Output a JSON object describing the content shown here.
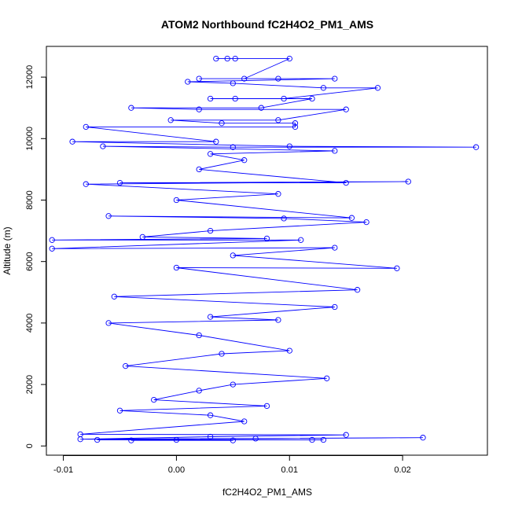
{
  "chart_data": {
    "type": "line",
    "title": "ATOM2 Northbound fC2H4O2_PM1_AMS",
    "xlabel": "fC2H4O2_PM1_AMS",
    "ylabel": "Altitude (m)",
    "xlim": [
      -0.0115,
      0.0275
    ],
    "ylim": [
      -300,
      13000
    ],
    "x_ticks": [
      -0.01,
      0.0,
      0.01,
      0.02
    ],
    "x_tick_labels": [
      "-0.01",
      "0.00",
      "0.01",
      "0.02"
    ],
    "y_ticks": [
      0,
      2000,
      4000,
      6000,
      8000,
      10000,
      12000
    ],
    "y_tick_labels": [
      "0",
      "2000",
      "4000",
      "6000",
      "8000",
      "10000",
      "12000"
    ],
    "grid": false,
    "legend": "none",
    "markers": "open-circle",
    "series_color": "#0000ff",
    "series": [
      {
        "points": [
          [
            0.0045,
            12600
          ],
          [
            0.0035,
            12600
          ],
          [
            0.0052,
            12600
          ],
          [
            0.01,
            12600
          ],
          [
            0.006,
            11950
          ],
          [
            0.002,
            11950
          ],
          [
            0.009,
            11950
          ],
          [
            0.014,
            11950
          ],
          [
            0.001,
            11850
          ],
          [
            0.005,
            11800
          ],
          [
            0.013,
            11650
          ],
          [
            0.0178,
            11650
          ],
          [
            0.0095,
            11300
          ],
          [
            0.003,
            11300
          ],
          [
            0.0052,
            11300
          ],
          [
            0.012,
            11300
          ],
          [
            0.0075,
            11000
          ],
          [
            -0.004,
            11000
          ],
          [
            0.002,
            10950
          ],
          [
            0.015,
            10950
          ],
          [
            0.009,
            10600
          ],
          [
            -0.0005,
            10600
          ],
          [
            0.004,
            10500
          ],
          [
            0.0105,
            10500
          ],
          [
            0.0105,
            10380
          ],
          [
            -0.008,
            10380
          ],
          [
            0.0035,
            9900
          ],
          [
            -0.0092,
            9900
          ],
          [
            0.01,
            9750
          ],
          [
            0.0265,
            9720
          ],
          [
            0.005,
            9720
          ],
          [
            -0.0065,
            9750
          ],
          [
            0.014,
            9600
          ],
          [
            0.003,
            9500
          ],
          [
            0.006,
            9300
          ],
          [
            0.002,
            9000
          ],
          [
            0.015,
            8560
          ],
          [
            -0.005,
            8560
          ],
          [
            0.0205,
            8600
          ],
          [
            -0.008,
            8520
          ],
          [
            0.009,
            8200
          ],
          [
            0.0,
            8000
          ],
          [
            0.0155,
            7420
          ],
          [
            -0.006,
            7480
          ],
          [
            0.0095,
            7400
          ],
          [
            0.0168,
            7280
          ],
          [
            0.003,
            7000
          ],
          [
            -0.003,
            6800
          ],
          [
            0.008,
            6750
          ],
          [
            -0.011,
            6700
          ],
          [
            0.011,
            6700
          ],
          [
            -0.011,
            6420
          ],
          [
            0.014,
            6450
          ],
          [
            0.005,
            6200
          ],
          [
            0.0195,
            5780
          ],
          [
            0.0,
            5800
          ],
          [
            0.016,
            5080
          ],
          [
            -0.0055,
            4860
          ],
          [
            0.014,
            4520
          ],
          [
            0.003,
            4200
          ],
          [
            0.009,
            4100
          ],
          [
            -0.006,
            4000
          ],
          [
            0.002,
            3600
          ],
          [
            0.01,
            3100
          ],
          [
            0.004,
            3000
          ],
          [
            -0.0045,
            2600
          ],
          [
            0.0133,
            2200
          ],
          [
            0.005,
            2000
          ],
          [
            0.002,
            1800
          ],
          [
            -0.002,
            1500
          ],
          [
            0.008,
            1300
          ],
          [
            -0.005,
            1150
          ],
          [
            0.003,
            1000
          ],
          [
            0.006,
            800
          ],
          [
            -0.0085,
            380
          ],
          [
            0.015,
            360
          ],
          [
            0.003,
            300
          ],
          [
            -0.0085,
            220
          ],
          [
            0.0218,
            270
          ],
          [
            0.007,
            240
          ],
          [
            -0.007,
            200
          ],
          [
            0.012,
            200
          ],
          [
            0.013,
            200
          ],
          [
            0.0,
            200
          ],
          [
            -0.004,
            180
          ],
          [
            0.005,
            180
          ]
        ]
      }
    ]
  }
}
